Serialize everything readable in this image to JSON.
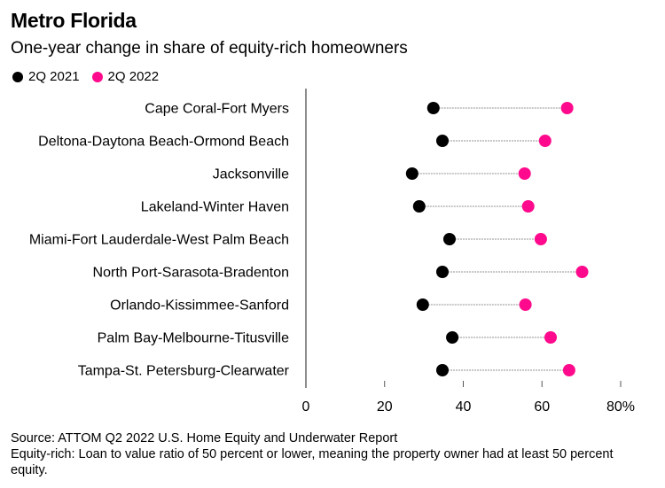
{
  "chart_data": {
    "type": "dumbbell",
    "title": "Metro Florida",
    "subtitle": "One-year change in share of equity-rich homeowners",
    "categories": [
      "Cape Coral-Fort Myers",
      "Deltona-Daytona Beach-Ormond Beach",
      "Jacksonville",
      "Lakeland-Winter Haven",
      "Miami-Fort Lauderdale-West Palm Beach",
      "North Port-Sarasota-Bradenton",
      "Orlando-Kissimmee-Sanford",
      "Palm Bay-Melbourne-Titusville",
      "Tampa-St. Petersburg-Clearwater"
    ],
    "series": [
      {
        "name": "2Q 2021",
        "color": "#000000",
        "values": [
          32.4,
          34.7,
          27.0,
          28.8,
          36.5,
          34.7,
          29.7,
          37.2,
          34.7
        ]
      },
      {
        "name": "2Q 2022",
        "color": "#ff0a8c",
        "values": [
          66.4,
          60.8,
          55.6,
          56.5,
          59.7,
          70.2,
          55.8,
          62.2,
          66.9
        ]
      }
    ],
    "xlim": [
      0,
      80
    ],
    "xticks": [
      0,
      20,
      40,
      60,
      80
    ],
    "xtick_labels": [
      "0",
      "20",
      "40",
      "60",
      "80%"
    ],
    "xlabel": "",
    "ylabel": "",
    "legend_position": "top-left",
    "grid": false
  },
  "legend": {
    "items": [
      {
        "label": "2Q 2021",
        "color": "#000000"
      },
      {
        "label": "2Q 2022",
        "color": "#ff0a8c"
      }
    ]
  },
  "footer": {
    "source": "Source: ATTOM Q2 2022 U.S. Home Equity and Underwater Report",
    "note": "Equity-rich: Loan to value ratio of 50 percent or lower, meaning the property owner had at least 50 percent equity."
  }
}
